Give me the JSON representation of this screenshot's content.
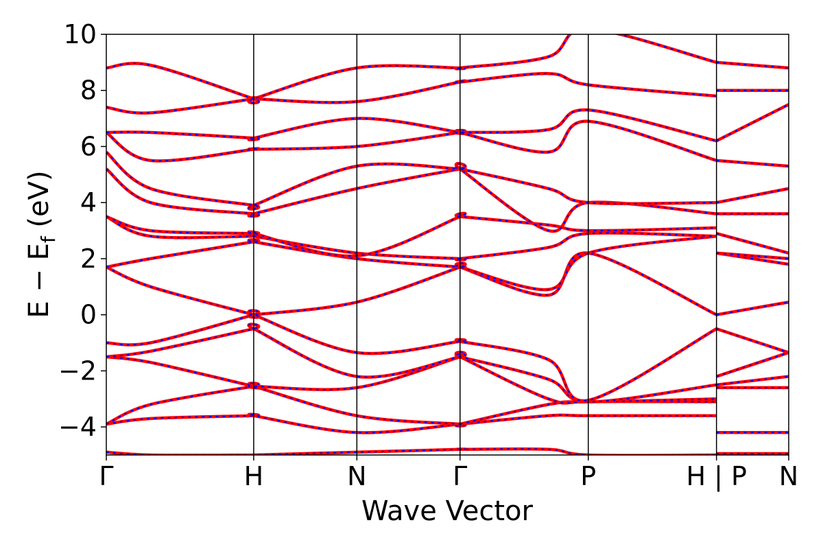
{
  "chart_data": {
    "type": "line",
    "xlabel": "Wave Vector",
    "ylabel": "E − E",
    "ylabel_sub": "f",
    "ylabel_unit": "(eV)",
    "ylim": [
      -5,
      10
    ],
    "yticks": [
      -4,
      -2,
      0,
      2,
      4,
      6,
      8,
      10
    ],
    "ytick_labels": [
      "−4",
      "−2",
      "0",
      "2",
      "4",
      "6",
      "8",
      "10"
    ],
    "kpath_positions": [
      0,
      1.0,
      0.7,
      0.7,
      0.87,
      0.87,
      0.49
    ],
    "kpath_labels": [
      "Γ",
      "H",
      "N",
      "Γ",
      "P",
      "H | P",
      "N"
    ],
    "segment_breaks": [
      5
    ],
    "grid": false,
    "series_style": [
      {
        "color": "#ff0000",
        "style": "solid"
      },
      {
        "color": "#0000ff",
        "style": "dashed"
      }
    ],
    "bands": [
      [
        -4.9,
        -5.0,
        -5.0,
        -5.0,
        -4.9,
        -4.8,
        -4.8,
        -4.8,
        -5.0,
        -5.0,
        -4.95,
        -4.95
      ],
      [
        -3.9,
        -3.7,
        -3.6,
        -3.6,
        -4.2,
        -3.9,
        -3.9,
        -3.6,
        -3.6,
        -3.6,
        -4.2,
        -4.2
      ],
      [
        -3.9,
        -3.2,
        -2.55,
        -2.55,
        -3.6,
        -3.9,
        -3.9,
        -3.2,
        -3.1,
        -3.1,
        -2.6,
        -2.6
      ],
      [
        -1.5,
        -1.7,
        -2.55,
        -2.55,
        -2.6,
        -1.5,
        -1.5,
        -3.0,
        -3.1,
        -3.0,
        -2.5,
        -2.2
      ],
      [
        -1.5,
        -1.3,
        -0.5,
        -0.5,
        -2.2,
        -1.5,
        -1.5,
        -2.3,
        -3.1,
        -2.5,
        -2.2,
        -1.35
      ],
      [
        -1.0,
        -1.0,
        0.0,
        0.0,
        -1.35,
        -0.95,
        -0.95,
        -1.6,
        -3.05,
        -0.5,
        -0.5,
        -1.35
      ],
      [
        1.7,
        1.0,
        0.0,
        0.0,
        0.45,
        1.7,
        1.7,
        0.7,
        2.2,
        0.0,
        0.0,
        0.45
      ],
      [
        1.7,
        2.0,
        2.6,
        2.6,
        2.0,
        1.7,
        1.7,
        0.9,
        2.2,
        2.8,
        2.2,
        1.8
      ],
      [
        3.5,
        2.8,
        2.8,
        2.8,
        2.2,
        2.0,
        2.0,
        2.4,
        2.9,
        2.8,
        2.2,
        2.0
      ],
      [
        3.5,
        3.0,
        2.9,
        2.9,
        2.1,
        3.5,
        3.5,
        3.2,
        3.0,
        3.1,
        2.9,
        2.2
      ],
      [
        5.2,
        4.0,
        3.6,
        3.6,
        4.5,
        5.2,
        5.2,
        3.0,
        4.0,
        3.6,
        3.6,
        3.6
      ],
      [
        5.8,
        4.5,
        3.9,
        3.9,
        5.3,
        5.2,
        5.2,
        4.5,
        4.0,
        4.0,
        4.0,
        4.5
      ],
      [
        6.5,
        5.5,
        5.9,
        5.9,
        6.0,
        6.5,
        6.5,
        5.8,
        6.9,
        5.5,
        5.5,
        5.3
      ],
      [
        6.5,
        6.5,
        6.3,
        6.3,
        7.0,
        6.5,
        6.5,
        6.6,
        7.3,
        6.2,
        6.2,
        7.5
      ],
      [
        7.4,
        7.2,
        7.7,
        7.7,
        7.6,
        8.3,
        8.3,
        8.6,
        8.2,
        7.8,
        8.0,
        8.0
      ],
      [
        8.8,
        8.9,
        7.7,
        7.7,
        8.8,
        8.8,
        8.8,
        9.2,
        10.2,
        9.0,
        9.0,
        8.8
      ]
    ],
    "band_x": [
      0,
      0.3,
      1.0,
      1.0,
      1.7,
      2.4,
      2.4,
      3.0,
      3.27,
      4.14,
      4.14,
      4.63
    ]
  }
}
